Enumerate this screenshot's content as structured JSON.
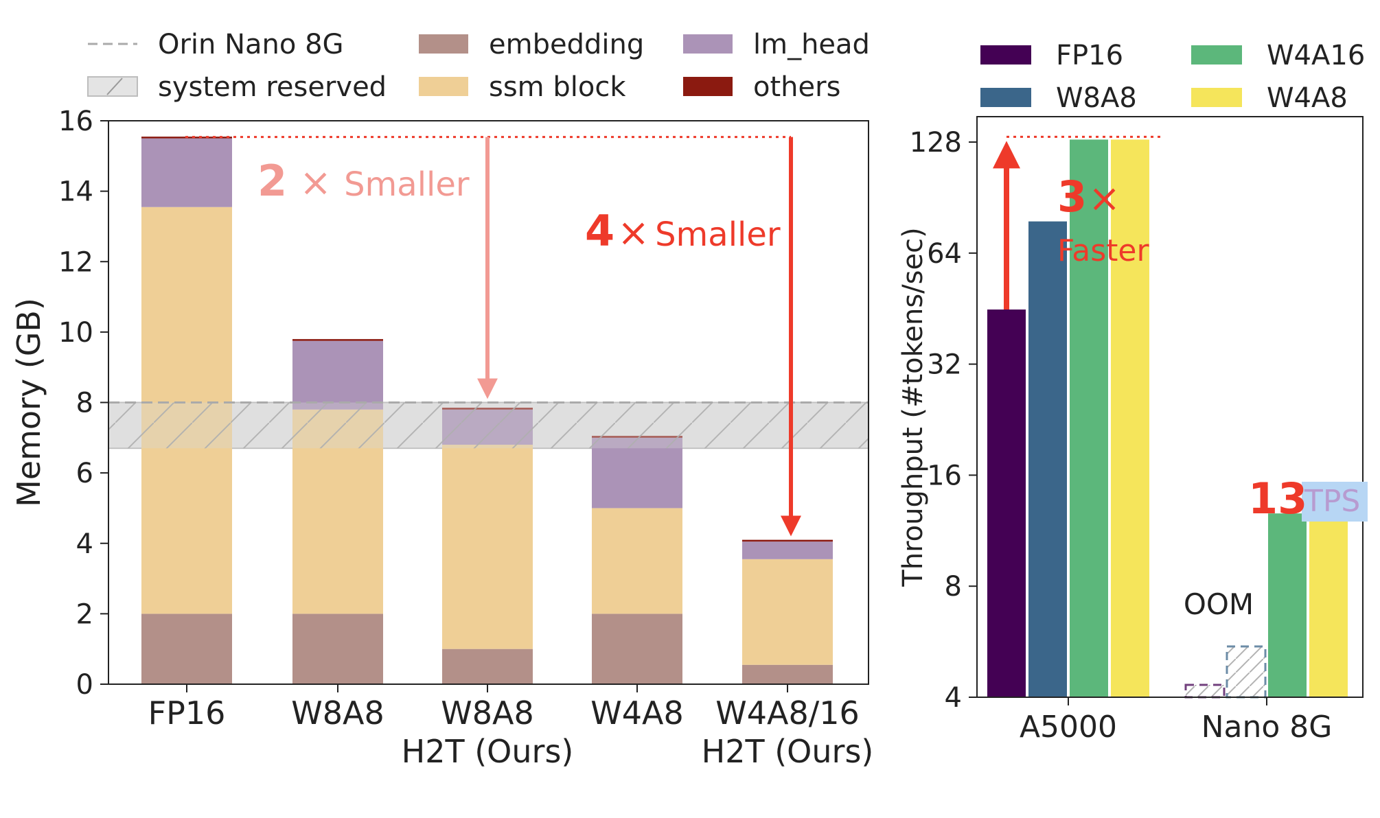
{
  "chart_data": [
    {
      "type": "bar",
      "stacked": true,
      "ylabel": "Memory (GB)",
      "ylim": [
        0,
        16
      ],
      "yticks": [
        0,
        2,
        4,
        6,
        8,
        10,
        12,
        14,
        16
      ],
      "categories": [
        "FP16",
        "W8A8",
        "W8A8\nH2T (Ours)",
        "W4A8",
        "W4A8/16\nH2T (Ours)"
      ],
      "category_lines": [
        [
          "FP16"
        ],
        [
          "W8A8"
        ],
        [
          "W8A8",
          "H2T (Ours)"
        ],
        [
          "W4A8"
        ],
        [
          "W4A8/16",
          "H2T (Ours)"
        ]
      ],
      "series": [
        {
          "name": "embedding",
          "color": "#b39089",
          "values": [
            2.0,
            2.0,
            1.0,
            2.0,
            0.55
          ]
        },
        {
          "name": "ssm block",
          "color": "#efcf96",
          "values": [
            11.55,
            5.8,
            5.8,
            3.0,
            3.0
          ]
        },
        {
          "name": "lm_head",
          "color": "#ab93b7",
          "values": [
            1.95,
            1.95,
            1.0,
            2.0,
            0.5
          ]
        },
        {
          "name": "others",
          "color": "#8b1a10",
          "values": [
            0.05,
            0.05,
            0.05,
            0.05,
            0.05
          ]
        }
      ],
      "reference_line": {
        "name": "Orin Nano 8G",
        "value": 8.0,
        "color": "#aaaaaa"
      },
      "reserved_band": {
        "name": "system reserved",
        "range": [
          6.7,
          8.0
        ],
        "color": "#e4e4e4"
      },
      "legend_position": "top",
      "annotations": [
        {
          "text_num": "2",
          "text_times": "×",
          "text_word": "Smaller",
          "color": "#f29a93",
          "from": 15.5,
          "to_category": 2,
          "to_value": 8.1
        },
        {
          "text_num": "4",
          "text_times": "×",
          "text_word": "Smaller",
          "color": "#ee3a2a",
          "from": 15.5,
          "to_category": 4,
          "to_value": 4.2
        }
      ],
      "grid": false
    },
    {
      "type": "bar",
      "ylabel": "Throughput (#tokens/sec)",
      "yscale": "log2",
      "ylim": [
        4,
        150
      ],
      "yticks": [
        4,
        8,
        16,
        32,
        64,
        128
      ],
      "categories": [
        "A5000",
        "Nano 8G"
      ],
      "series": [
        {
          "name": "FP16",
          "color": "#440154",
          "values": [
            45,
            null
          ]
        },
        {
          "name": "W8A8",
          "color": "#3b668a",
          "values": [
            78,
            null
          ]
        },
        {
          "name": "W4A16",
          "color": "#5cb77b",
          "values": [
            130,
            12.6
          ]
        },
        {
          "name": "W4A8",
          "color": "#f5e55b",
          "values": [
            130,
            12.6
          ]
        }
      ],
      "oom_label": "OOM",
      "legend_position": "top",
      "annotations": [
        {
          "text_num": "3",
          "text_times": "×",
          "text_word": "Faster",
          "color": "#ee3a2a"
        },
        {
          "text_num": "13",
          "text_unit": "TPS",
          "color": "#ee3a2a",
          "unit_color": "#b79bd0",
          "unit_bg": "#b7d6f4"
        }
      ],
      "grid": false
    }
  ]
}
